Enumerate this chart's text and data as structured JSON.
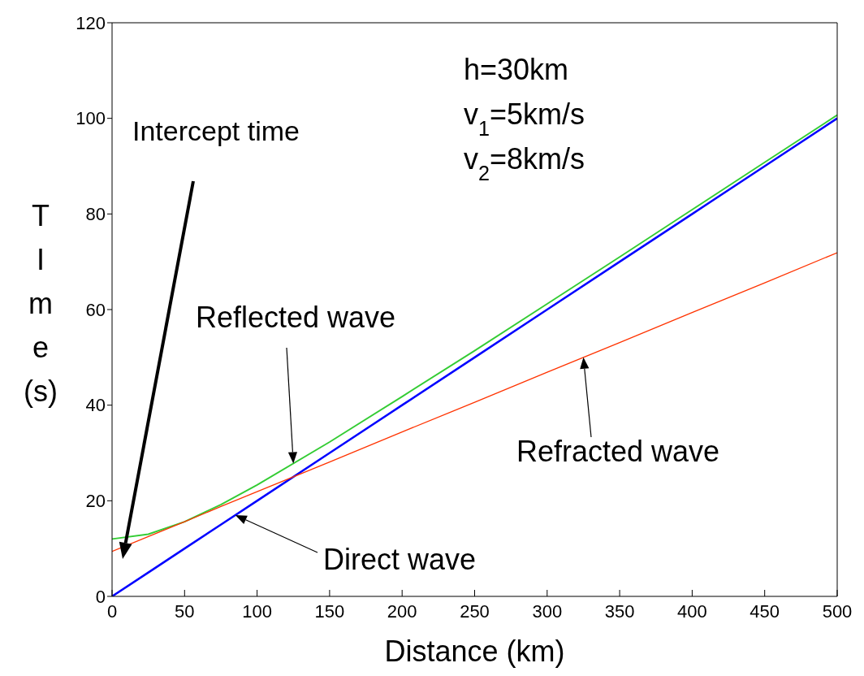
{
  "chart_data": {
    "type": "line",
    "xlabel": "Distance (km)",
    "ylabel": "TIme (s)",
    "x": [
      0,
      25,
      50,
      75,
      100,
      150,
      200,
      250,
      300,
      350,
      400,
      450,
      500
    ],
    "series": [
      {
        "name": "Direct wave",
        "color": "#0000ff",
        "values": [
          0,
          5,
          10,
          15,
          20,
          30,
          40,
          50,
          60,
          70,
          80,
          90,
          100
        ]
      },
      {
        "name": "Reflected wave",
        "color": "#33cc33",
        "values": [
          12,
          13,
          15.6,
          19.2,
          23.3,
          32.3,
          41.8,
          51.4,
          61.2,
          71,
          80.9,
          90.8,
          100.7
        ]
      },
      {
        "name": "Refracted wave",
        "color": "#ff3300",
        "values": [
          9.4,
          12.5,
          15.6,
          18.8,
          21.9,
          28.1,
          34.4,
          40.6,
          46.9,
          53.1,
          59.4,
          65.6,
          71.9
        ]
      }
    ],
    "xlim": [
      0,
      500
    ],
    "xticks": [
      0,
      50,
      100,
      150,
      200,
      250,
      300,
      350,
      400,
      450,
      500
    ],
    "ylim": [
      0,
      120
    ],
    "yticks": [
      0,
      20,
      40,
      60,
      80,
      100,
      120
    ],
    "marker": "none",
    "line_style": "solid",
    "annotations": [
      "Intercept time",
      "h=30km",
      "v$_{1}$=5km/s",
      "v$_{2}$=8km/s"
    ]
  }
}
